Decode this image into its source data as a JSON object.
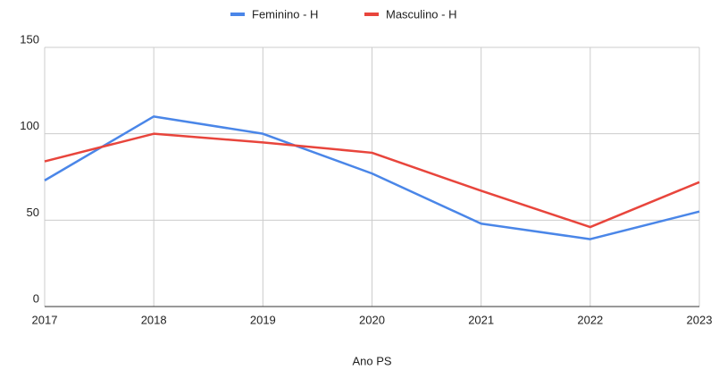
{
  "chart_data": {
    "type": "line",
    "x_label": "Ano PS",
    "x": [
      2017,
      2018,
      2019,
      2020,
      2021,
      2022,
      2023
    ],
    "series": [
      {
        "name": "Feminino - H",
        "color": "#4a86e8",
        "values": [
          73,
          110,
          100,
          77,
          48,
          39,
          55
        ]
      },
      {
        "name": "Masculino - H",
        "color": "#e8453c",
        "values": [
          84,
          100,
          95,
          89,
          67,
          46,
          72
        ]
      }
    ],
    "xlim": [
      2017,
      2023
    ],
    "xticks": [
      2017,
      2018,
      2019,
      2020,
      2021,
      2022,
      2023
    ],
    "ylim": [
      0,
      150
    ],
    "yticks": [
      0,
      50,
      100,
      150
    ],
    "grid": true,
    "legend": "top"
  }
}
